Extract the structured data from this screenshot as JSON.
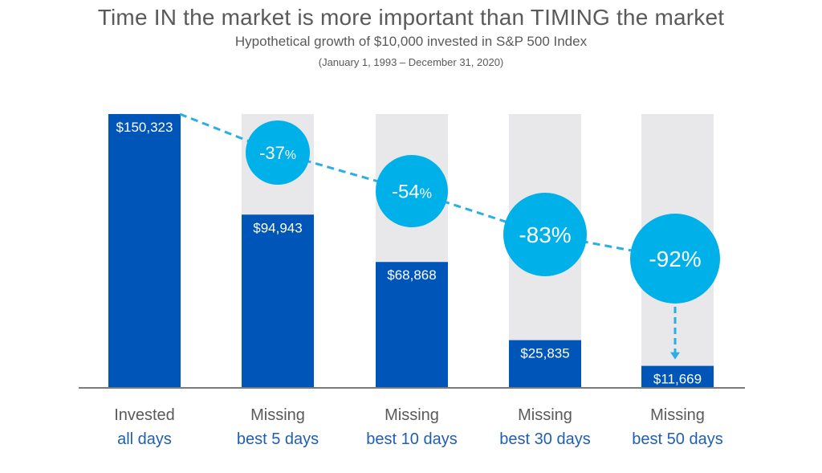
{
  "header": {
    "title": "Time IN the market is more important than TIMING the market",
    "subtitle": "Hypothetical growth of $10,000 invested in S&P 500 Index",
    "date_range": "(January 1, 1993 – December 31, 2020)"
  },
  "chart_data": {
    "type": "bar",
    "title": "Time IN the market is more important than TIMING the market",
    "subtitle": "Hypothetical growth of $10,000 invested in S&P 500 Index",
    "categories": [
      {
        "line1": "Invested",
        "line2": "all days"
      },
      {
        "line1": "Missing",
        "line2": "best 5 days"
      },
      {
        "line1": "Missing",
        "line2": "best 10 days"
      },
      {
        "line1": "Missing",
        "line2": "best 30 days"
      },
      {
        "line1": "Missing",
        "line2": "best 50 days"
      }
    ],
    "values": [
      150323,
      94943,
      68868,
      25835,
      11669
    ],
    "value_labels": [
      "$150,323",
      "$94,943",
      "$68,868",
      "$25,835",
      "$11,669"
    ],
    "changes": [
      {
        "num": "-37",
        "pct": "%"
      },
      {
        "num": "-54",
        "pct": "%"
      },
      {
        "num": "-83",
        "pct": "%"
      },
      {
        "num": "-92",
        "pct": "%"
      }
    ],
    "ylim": [
      0,
      150323
    ],
    "grid": false,
    "colors": {
      "bar": "#0055b8",
      "track": "#e8e8ea",
      "circle": "#00b0e8",
      "dash": "#29aee6",
      "baseline": "#7a7a7a",
      "category_top": "#5a5a5a",
      "category_bottom": "#1f5fb3"
    }
  }
}
